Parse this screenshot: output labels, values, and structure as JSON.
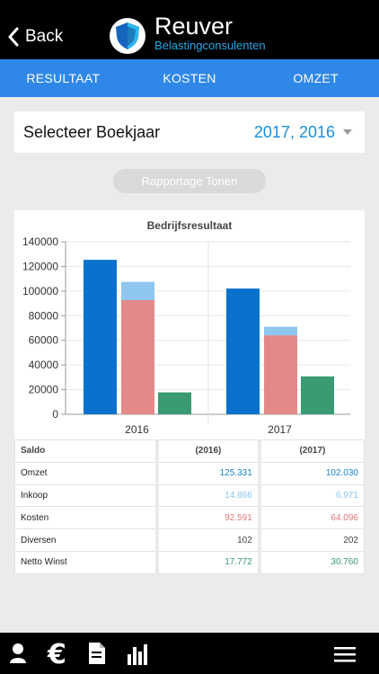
{
  "header": {
    "back_label": "Back",
    "brand_name": "Reuver",
    "brand_sub": "Belastingconsulenten"
  },
  "tabs": [
    "RESULTAAT",
    "KOSTEN",
    "OMZET"
  ],
  "year_selector": {
    "label": "Selecteer Boekjaar",
    "value": "2017, 2016"
  },
  "report_button": "Rapportage Tonen",
  "colors": {
    "omzet": "#0a72cc",
    "inkoop": "#8ec6ee",
    "kosten": "#e38989",
    "netto_winst": "#3a9a72",
    "tabbar": "#2f88e8"
  },
  "chart_data": {
    "type": "bar",
    "title": "Bedrijfsresultaat",
    "categories": [
      "2016",
      "2017"
    ],
    "ylim": [
      0,
      140000
    ],
    "yticks": [
      "0",
      "20000",
      "40000",
      "60000",
      "80000",
      "100000",
      "120000",
      "140000"
    ],
    "grid": true,
    "series": [
      {
        "name": "Omzet",
        "values": [
          125331,
          102030
        ]
      },
      {
        "name": "Inkoop",
        "values": [
          14866,
          6971
        ],
        "stacked_on": "Kosten"
      },
      {
        "name": "Kosten",
        "values": [
          92591,
          64096
        ]
      },
      {
        "name": "Netto Winst",
        "values": [
          17772,
          30760
        ]
      }
    ]
  },
  "table": {
    "headers": [
      "Saldo",
      "(2016)",
      "(2017)"
    ],
    "rows": [
      {
        "label": "Omzet",
        "v2016": "125.331",
        "v2017": "102.030",
        "color": "#1a84c8"
      },
      {
        "label": "Inkoop",
        "v2016": "14.866",
        "v2017": "6.971",
        "color": "#8ec6ee"
      },
      {
        "label": "Kosten",
        "v2016": "92.591",
        "v2017": "64.096",
        "color": "#e07a7a"
      },
      {
        "label": "Diversen",
        "v2016": "102",
        "v2017": "202",
        "color": "#444444"
      },
      {
        "label": "Netto Winst",
        "v2016": "17.772",
        "v2017": "30.760",
        "color": "#3a9a72"
      }
    ]
  },
  "bottom_nav": [
    "person-icon",
    "euro-icon",
    "document-icon",
    "bar-chart-icon",
    "menu-icon"
  ]
}
